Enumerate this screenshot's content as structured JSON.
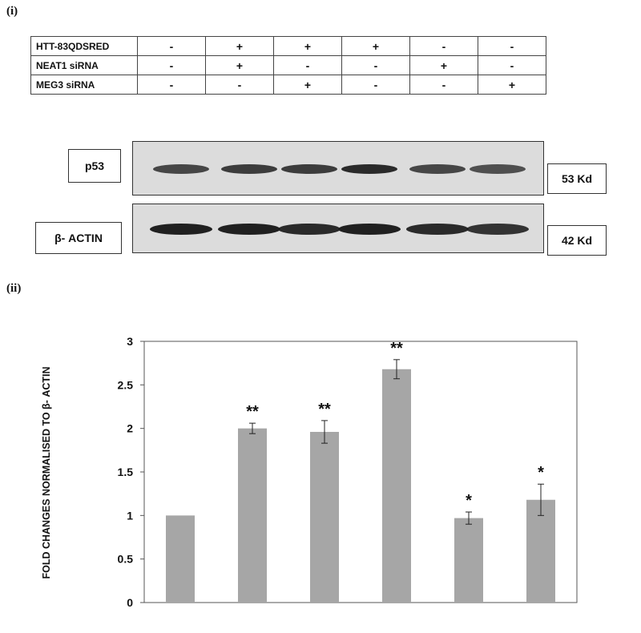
{
  "panels": {
    "i": "(i)",
    "ii": "(ii)"
  },
  "treatment_table": {
    "rows": [
      {
        "label": "HTT-83QDSRED",
        "cells": [
          "-",
          "+",
          "+",
          "+",
          "-",
          "-"
        ]
      },
      {
        "label": "NEAT1 siRNA",
        "cells": [
          "-",
          "+",
          "-",
          "-",
          "+",
          "-"
        ]
      },
      {
        "label": "MEG3 siRNA",
        "cells": [
          "-",
          "-",
          "+",
          "-",
          "-",
          "+"
        ]
      }
    ]
  },
  "blots": [
    {
      "label": "p53",
      "size": "53 Kd",
      "band_intensity": [
        0.8,
        0.85,
        0.85,
        0.95,
        0.8,
        0.75
      ]
    },
    {
      "label": "β- ACTIN",
      "size": "42 Kd",
      "band_intensity": [
        1,
        1,
        0.95,
        1,
        0.95,
        0.9
      ]
    }
  ],
  "chart_data": {
    "type": "bar",
    "ylabel": "FOLD CHANGES NORMALISED TO β- ACTIN",
    "ylim": [
      0,
      3
    ],
    "yticks": [
      "0",
      "0.5",
      "1",
      "1.5",
      "2",
      "2.5",
      "3"
    ],
    "values": [
      1.0,
      2.0,
      1.96,
      2.68,
      0.97,
      1.18
    ],
    "errors": [
      0,
      0.06,
      0.13,
      0.11,
      0.07,
      0.18
    ],
    "significance": [
      "",
      "**",
      "**",
      "**",
      "*",
      "*"
    ],
    "bar_color": "#a6a6a6",
    "grid": false
  }
}
